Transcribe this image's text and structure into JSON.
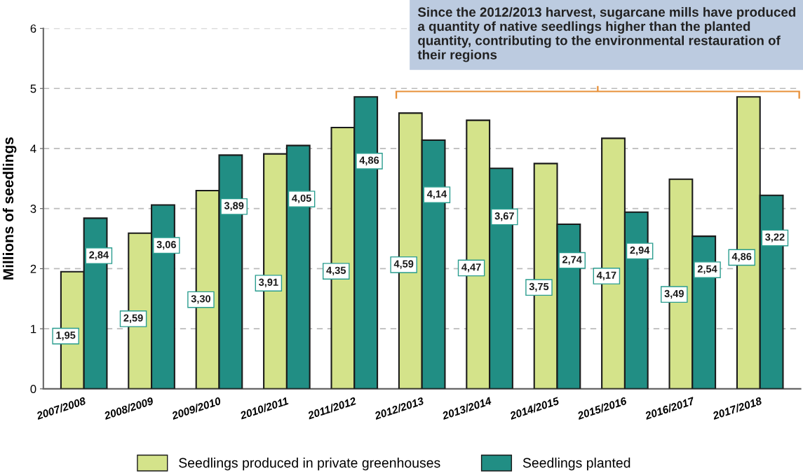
{
  "chart_data": {
    "type": "bar",
    "ylabel": "Millions of seedlings",
    "categories": [
      "2007/2008",
      "2008/2009",
      "2009/2010",
      "2010/2011",
      "2011/2012",
      "2012/2013",
      "2013/2014",
      "2014/2015",
      "2015/2016",
      "2016/2017",
      "2017/2018"
    ],
    "series": [
      {
        "name": "Seedlings produced in private greenhouses",
        "color": "#d4e38a",
        "values": [
          1.95,
          2.59,
          3.3,
          3.91,
          4.35,
          4.59,
          4.47,
          3.75,
          4.17,
          3.49,
          4.86
        ],
        "value_labels": [
          "1,95",
          "2,59",
          "3,30",
          "3,91",
          "4,35",
          "4,59",
          "4,47",
          "3,75",
          "4,17",
          "3,49",
          "4,86"
        ]
      },
      {
        "name": "Seedlings planted",
        "color": "#218e84",
        "values": [
          2.84,
          3.06,
          3.89,
          4.05,
          4.86,
          4.14,
          3.67,
          2.74,
          2.94,
          2.54,
          3.22
        ],
        "value_labels": [
          "2,84",
          "3,06",
          "3,89",
          "4,05",
          "4,86",
          "4,14",
          "3,67",
          "2,74",
          "2,94",
          "2,54",
          "3,22"
        ]
      }
    ],
    "ylim": [
      0,
      6
    ],
    "yticks": [
      0,
      1,
      2,
      3,
      4,
      5,
      6
    ],
    "grid": "y",
    "legend": "bottom",
    "annotations": [
      "Since the 2012/2013 harvest, sugarcane mills have produced a quantity of native seedlings higher than the planted quantity, contributing to the environmental restauration of their regions"
    ]
  }
}
